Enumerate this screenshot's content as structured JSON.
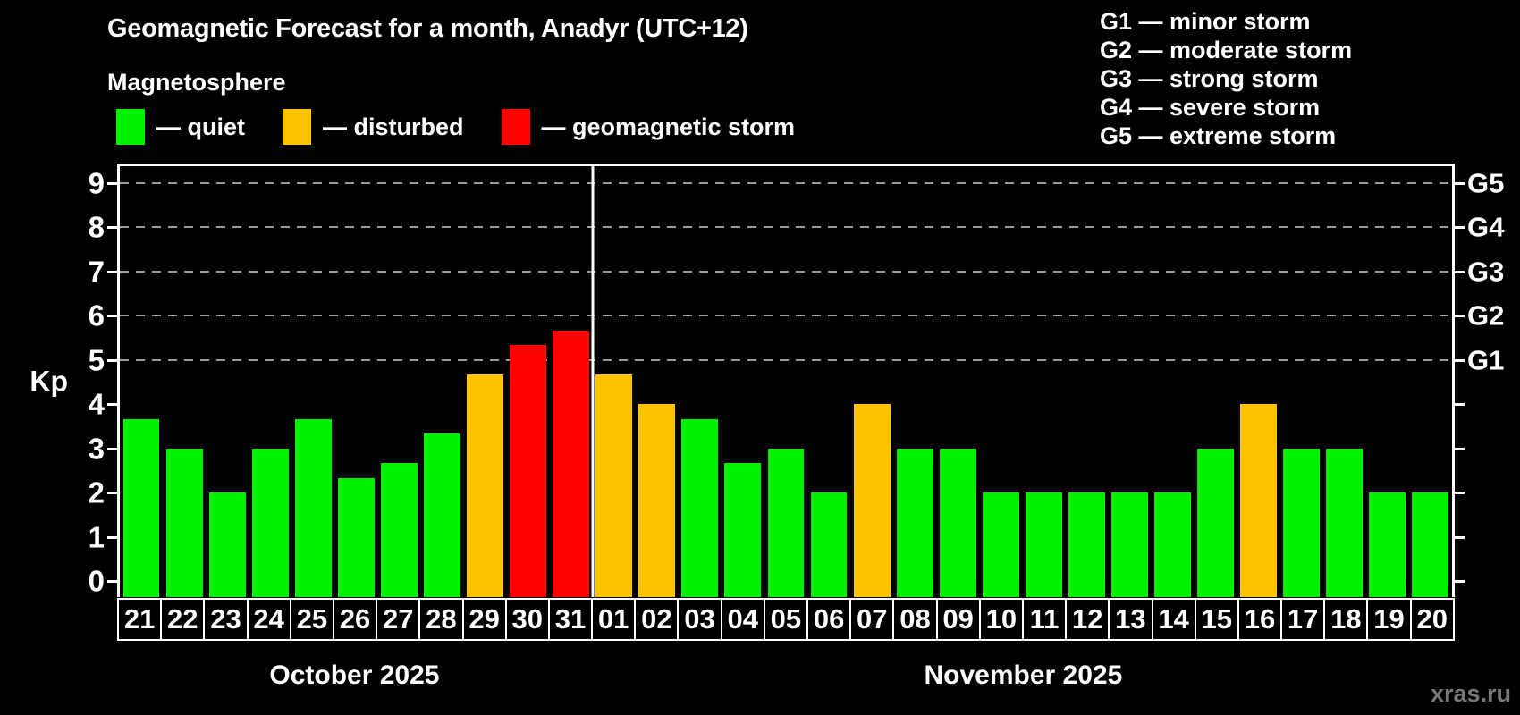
{
  "title": "Geomagnetic Forecast for a month, Anadyr (UTC+12)",
  "subtitle": "Magnetosphere",
  "legend": {
    "items": [
      {
        "label": "— quiet",
        "level": "quiet"
      },
      {
        "label": "— disturbed",
        "level": "disturbed"
      },
      {
        "label": "— geomagnetic storm",
        "level": "storm"
      }
    ]
  },
  "storm_scale": {
    "items": [
      "G1 — minor storm",
      "G2 — moderate storm",
      "G3 — strong storm",
      "G4 — severe storm",
      "G5 — extreme storm"
    ]
  },
  "axis": {
    "y_label": "Kp",
    "y_ticks": [
      0,
      1,
      2,
      3,
      4,
      5,
      6,
      7,
      8,
      9
    ],
    "right_labels": [
      {
        "kp": 5,
        "label": "G1"
      },
      {
        "kp": 6,
        "label": "G2"
      },
      {
        "kp": 7,
        "label": "G3"
      },
      {
        "kp": 8,
        "label": "G4"
      },
      {
        "kp": 9,
        "label": "G5"
      }
    ]
  },
  "chart_data": {
    "type": "bar",
    "title": "Geomagnetic Forecast for a month, Anadyr (UTC+12)",
    "ylabel": "Kp",
    "ylim": [
      0,
      9
    ],
    "grid": "dashed horizontal at Kp 5-9",
    "gridline_levels": [
      5,
      6,
      7,
      8,
      9
    ],
    "categories": [
      "21",
      "22",
      "23",
      "24",
      "25",
      "26",
      "27",
      "28",
      "29",
      "30",
      "31",
      "01",
      "02",
      "03",
      "04",
      "05",
      "06",
      "07",
      "08",
      "09",
      "10",
      "11",
      "12",
      "13",
      "14",
      "15",
      "16",
      "17",
      "18",
      "19",
      "20"
    ],
    "values": [
      3.67,
      3,
      2,
      3,
      3.67,
      2.33,
      2.67,
      3.33,
      4.67,
      5.33,
      5.67,
      4.67,
      4,
      3.67,
      2.67,
      3,
      2,
      4,
      3,
      3,
      2,
      2,
      2,
      2,
      2,
      3,
      4,
      3,
      3,
      2,
      2
    ],
    "levels": [
      "quiet",
      "quiet",
      "quiet",
      "quiet",
      "quiet",
      "quiet",
      "quiet",
      "quiet",
      "disturbed",
      "storm",
      "storm",
      "disturbed",
      "disturbed",
      "quiet",
      "quiet",
      "quiet",
      "quiet",
      "disturbed",
      "quiet",
      "quiet",
      "quiet",
      "quiet",
      "quiet",
      "quiet",
      "quiet",
      "quiet",
      "disturbed",
      "quiet",
      "quiet",
      "quiet",
      "quiet"
    ],
    "months": [
      {
        "label": "October 2025",
        "days": 11
      },
      {
        "label": "November 2025",
        "days": 20
      }
    ]
  },
  "colors": {
    "quiet": "#00f000",
    "disturbed": "#ffc200",
    "storm": "#ff0000",
    "grid": "#9a9a9a",
    "axis": "#ffffff",
    "background": "#000000",
    "watermark": "#787878"
  },
  "watermark": "xras.ru"
}
